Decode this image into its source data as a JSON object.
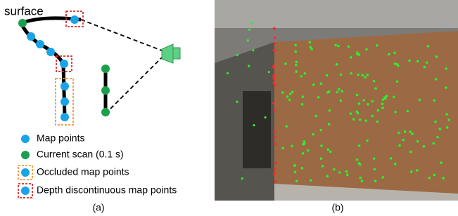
{
  "panel_a": {
    "surface_label": "surface",
    "legend": [
      "Map points",
      "Current scan (0.1 s)",
      "Occluded map points",
      "Depth discontinuous map points"
    ],
    "caption": "(a)"
  },
  "panel_b": {
    "caption": "(b)"
  }
}
